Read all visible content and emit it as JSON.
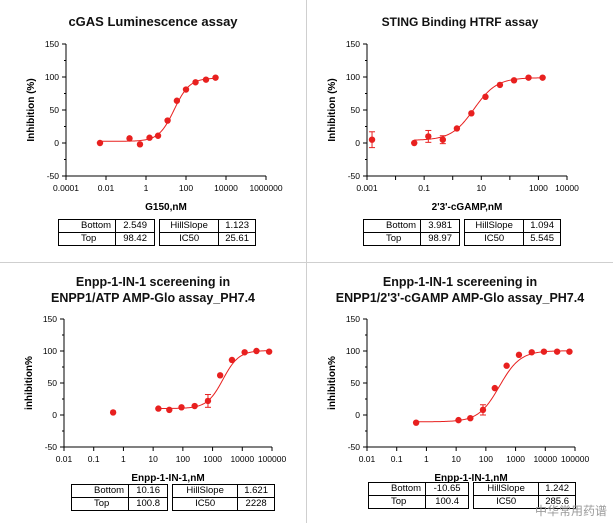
{
  "chart_data": [
    {
      "type": "scatter",
      "title": "cGAS  Luminescence assay",
      "xlabel": "G150,nM",
      "ylabel": "Inhibition (%)",
      "x_scale": "log",
      "xlim": [
        0.0001,
        1000000
      ],
      "x_ticks": [
        "0.0001",
        "0.01",
        "1",
        "100",
        "10000",
        "1000000"
      ],
      "ylim": [
        -50,
        150
      ],
      "y_ticks": [
        "-50",
        "0",
        "50",
        "100",
        "150"
      ],
      "color": "#e8201f",
      "points": [
        {
          "x": 0.005,
          "y": 0
        },
        {
          "x": 0.15,
          "y": 7
        },
        {
          "x": 0.5,
          "y": -2
        },
        {
          "x": 1.5,
          "y": 8
        },
        {
          "x": 4,
          "y": 11
        },
        {
          "x": 12,
          "y": 34
        },
        {
          "x": 35,
          "y": 64
        },
        {
          "x": 100,
          "y": 81
        },
        {
          "x": 300,
          "y": 92
        },
        {
          "x": 1000,
          "y": 96
        },
        {
          "x": 3000,
          "y": 99
        }
      ],
      "error_bars": [],
      "curve": {
        "bottom": 2.549,
        "top": 98.42,
        "ic50": 25.61,
        "hill": 1.123,
        "x_min": 0.005,
        "x_max": 3000
      },
      "params": {
        "bottom_label": "Bottom",
        "bottom": "2.549",
        "hill_label": "HillSlope",
        "hill": "1.123",
        "top_label": "Top",
        "top": "98.42",
        "ic50_label": "IC50",
        "ic50": "25.61"
      }
    },
    {
      "type": "scatter",
      "title": "STING Binding HTRF  assay",
      "xlabel": "2'3'-cGAMP,nM",
      "ylabel": "Inhibition (%)",
      "x_scale": "log",
      "xlim": [
        0.001,
        10000
      ],
      "x_ticks": [
        "0.001",
        "0.01",
        "0.1",
        "1",
        "10",
        "100",
        "1000",
        "10000"
      ],
      "x_tick_labels": [
        "0.001",
        "",
        "0.1",
        "",
        "10",
        "",
        "1000",
        "10000"
      ],
      "ylim": [
        -50,
        150
      ],
      "y_ticks": [
        "-50",
        "0",
        "50",
        "100",
        "150"
      ],
      "color": "#e8201f",
      "points": [
        {
          "x": 0.0015,
          "y": 5
        },
        {
          "x": 0.045,
          "y": 0
        },
        {
          "x": 0.14,
          "y": 10
        },
        {
          "x": 0.45,
          "y": 5
        },
        {
          "x": 1.4,
          "y": 22
        },
        {
          "x": 4.5,
          "y": 45
        },
        {
          "x": 14,
          "y": 70
        },
        {
          "x": 45,
          "y": 88
        },
        {
          "x": 140,
          "y": 95
        },
        {
          "x": 450,
          "y": 99
        },
        {
          "x": 1400,
          "y": 99
        }
      ],
      "error_bars": [
        {
          "x": 0.0015,
          "low": -7,
          "high": 17
        },
        {
          "x": 0.14,
          "low": 1,
          "high": 19
        },
        {
          "x": 0.45,
          "low": -1,
          "high": 11
        }
      ],
      "curve": {
        "bottom": 3.981,
        "top": 98.97,
        "ic50": 5.545,
        "hill": 1.094,
        "x_min": 0.045,
        "x_max": 1400
      },
      "params": {
        "bottom_label": "Bottom",
        "bottom": "3.981",
        "hill_label": "HillSlope",
        "hill": "1.094",
        "top_label": "Top",
        "top": "98.97",
        "ic50_label": "IC50",
        "ic50": "5.545"
      }
    },
    {
      "type": "scatter",
      "title": "Enpp-1-IN-1 scereening in",
      "subtitle": "ENPP1/ATP AMP-Glo assay_PH7.4",
      "xlabel": "Enpp-1-IN-1,nM",
      "ylabel": "inhibition%",
      "x_scale": "log",
      "xlim": [
        0.01,
        100000
      ],
      "x_ticks": [
        "0.01",
        "0.1",
        "1",
        "10",
        "100",
        "1000",
        "10000",
        "100000"
      ],
      "ylim": [
        -50,
        150
      ],
      "y_ticks": [
        "-50",
        "0",
        "50",
        "100",
        "150"
      ],
      "color": "#e8201f",
      "points": [
        {
          "x": 0.45,
          "y": 4
        },
        {
          "x": 15,
          "y": 10
        },
        {
          "x": 35,
          "y": 8
        },
        {
          "x": 90,
          "y": 12
        },
        {
          "x": 250,
          "y": 14
        },
        {
          "x": 700,
          "y": 22
        },
        {
          "x": 1800,
          "y": 62
        },
        {
          "x": 4500,
          "y": 86
        },
        {
          "x": 12000,
          "y": 98
        },
        {
          "x": 30000,
          "y": 100
        },
        {
          "x": 80000,
          "y": 99
        }
      ],
      "error_bars": [
        {
          "x": 700,
          "low": 12,
          "high": 32
        }
      ],
      "curve": {
        "bottom": 10.16,
        "top": 100.8,
        "ic50": 2228,
        "hill": 1.621,
        "x_min": 15,
        "x_max": 80000
      },
      "params": {
        "bottom_label": "Bottom",
        "bottom": "10.16",
        "hill_label": "HillSlope",
        "hill": "1.621",
        "top_label": "Top",
        "top": "100.8",
        "ic50_label": "IC50",
        "ic50": "2228"
      }
    },
    {
      "type": "scatter",
      "title": "Enpp-1-IN-1 scereening in",
      "subtitle": "ENPP1/2'3'-cGAMP AMP-Glo assay_PH7.4",
      "xlabel": "Enpp-1-IN-1,nM",
      "ylabel": "inhibition%",
      "x_scale": "log",
      "xlim": [
        0.01,
        100000
      ],
      "x_ticks": [
        "0.01",
        "0.1",
        "1",
        "10",
        "100",
        "1000",
        "10000",
        "100000"
      ],
      "ylim": [
        -50,
        150
      ],
      "y_ticks": [
        "-50",
        "0",
        "50",
        "100",
        "150"
      ],
      "color": "#e8201f",
      "points": [
        {
          "x": 0.45,
          "y": -12
        },
        {
          "x": 12,
          "y": -8
        },
        {
          "x": 30,
          "y": -5
        },
        {
          "x": 80,
          "y": 8
        },
        {
          "x": 200,
          "y": 42
        },
        {
          "x": 500,
          "y": 77
        },
        {
          "x": 1300,
          "y": 94
        },
        {
          "x": 3500,
          "y": 98
        },
        {
          "x": 9000,
          "y": 99
        },
        {
          "x": 25000,
          "y": 99
        },
        {
          "x": 65000,
          "y": 99
        }
      ],
      "error_bars": [
        {
          "x": 80,
          "low": 0,
          "high": 16
        }
      ],
      "curve": {
        "bottom": -10.65,
        "top": 100.4,
        "ic50": 285.6,
        "hill": 1.242,
        "x_min": 0.45,
        "x_max": 65000
      },
      "params": {
        "bottom_label": "Bottom",
        "bottom": "-10.65",
        "hill_label": "HillSlope",
        "hill": "1.242",
        "top_label": "Top",
        "top": "100.4",
        "ic50_label": "IC50",
        "ic50": "285.6"
      }
    }
  ],
  "watermark": "中华常用药谱"
}
